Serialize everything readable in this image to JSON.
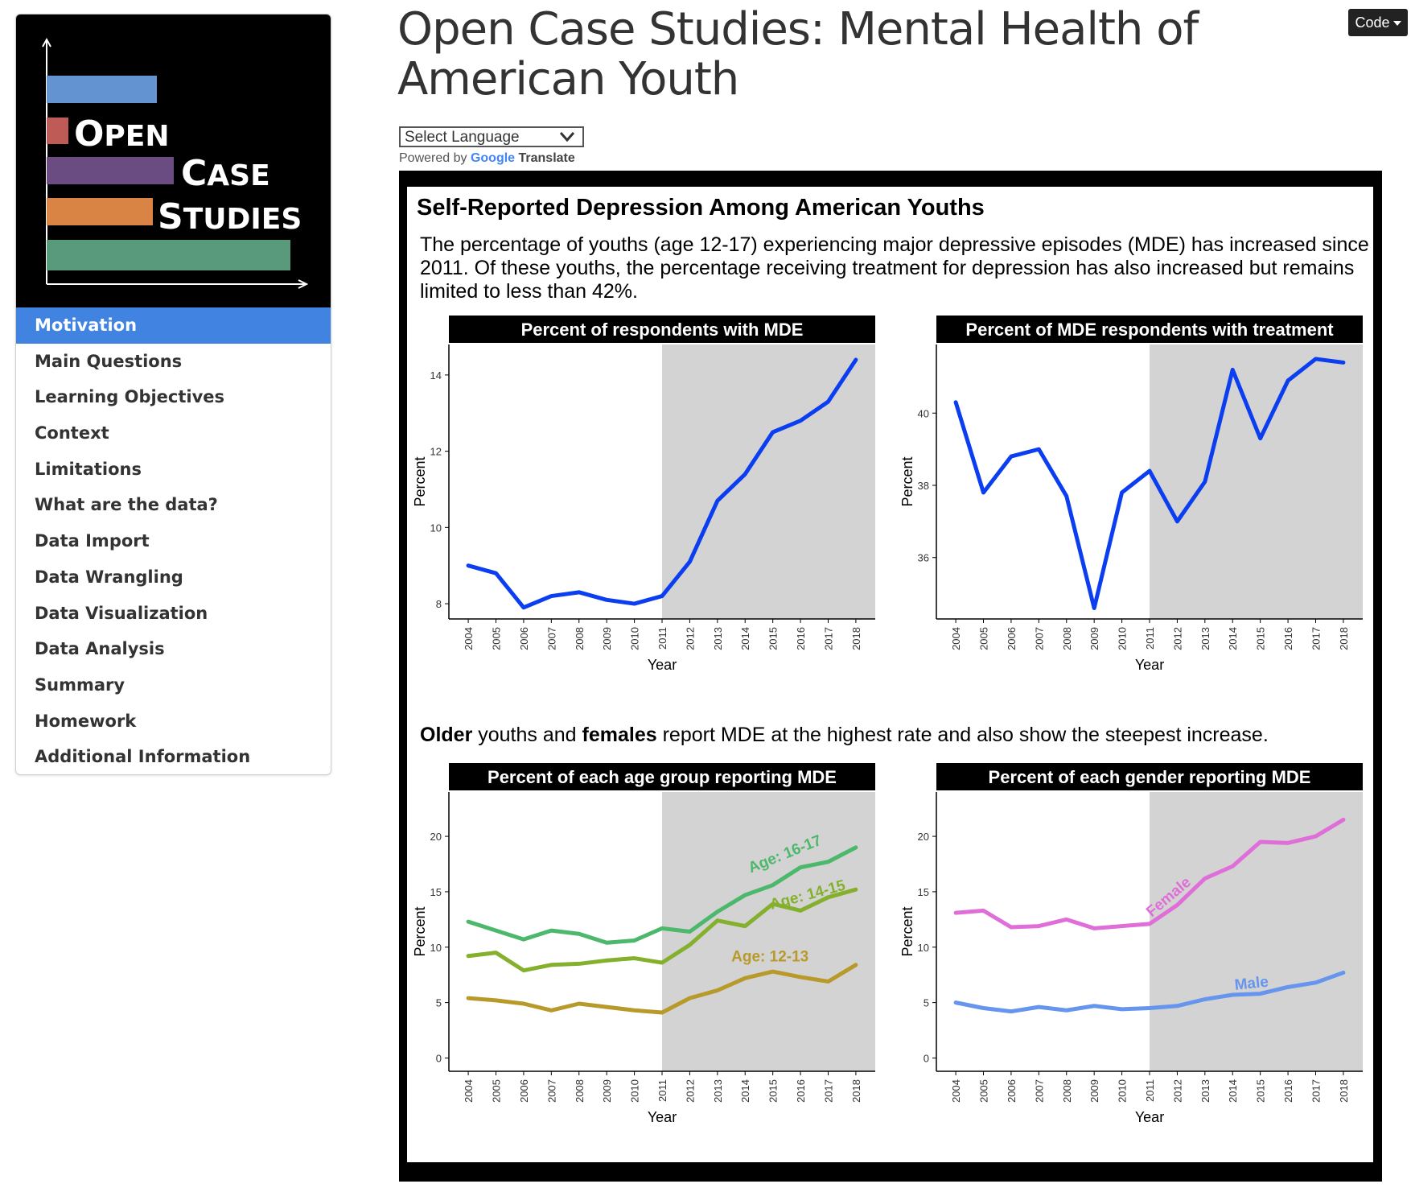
{
  "sidebar": {
    "logo": {
      "line1": "Open",
      "line2": "Case",
      "line3": "Studies"
    },
    "items": [
      {
        "label": "Motivation",
        "active": true
      },
      {
        "label": "Main Questions"
      },
      {
        "label": "Learning Objectives"
      },
      {
        "label": "Context"
      },
      {
        "label": "Limitations"
      },
      {
        "label": "What are the data?"
      },
      {
        "label": "Data Import"
      },
      {
        "label": "Data Wrangling"
      },
      {
        "label": "Data Visualization"
      },
      {
        "label": "Data Analysis"
      },
      {
        "label": "Summary"
      },
      {
        "label": "Homework"
      },
      {
        "label": "Additional Information"
      }
    ]
  },
  "header": {
    "title": "Open Case Studies: Mental Health of American Youth",
    "code_button": "Code"
  },
  "translate": {
    "select_label": "Select Language",
    "powered_by": "Powered by",
    "google": "Google",
    "translate": "Translate"
  },
  "infographic": {
    "title": "Self-Reported Depression Among American Youths",
    "description": "The percentage of youths (age 12-17) experiencing major depressive episodes (MDE) has increased since 2011. Of these youths, the percentage receiving treatment for depression has also increased but remains limited to less than 42%.",
    "description2_parts": [
      "Older",
      " youths and ",
      "females",
      " report MDE at the highest rate and also show the steepest increase."
    ]
  },
  "colors": {
    "sidebar_active": "#4183e0",
    "line_blue": "#0a3ef0",
    "shade": "#d3d3d3",
    "age_16_17": "#4cb86b",
    "age_14_15": "#85b02d",
    "age_12_13": "#b89a2a",
    "female": "#e06ed8",
    "male": "#6695ee"
  },
  "chart_data": [
    {
      "type": "line",
      "title": "Percent of respondents with MDE",
      "xlabel": "Year",
      "ylabel": "Percent",
      "x": [
        2004,
        2005,
        2006,
        2007,
        2008,
        2009,
        2010,
        2011,
        2012,
        2013,
        2014,
        2015,
        2016,
        2017,
        2018
      ],
      "ylim": [
        7.6,
        14.8
      ],
      "yticks": [
        8,
        10,
        12,
        14
      ],
      "shade_from": 2011,
      "series": [
        {
          "values": [
            9.0,
            8.8,
            7.9,
            8.2,
            8.3,
            8.1,
            8.0,
            8.2,
            9.1,
            10.7,
            11.4,
            12.5,
            12.8,
            13.3,
            14.4
          ]
        }
      ]
    },
    {
      "type": "line",
      "title": "Percent of MDE respondents with treatment",
      "xlabel": "Year",
      "ylabel": "Percent",
      "x": [
        2004,
        2005,
        2006,
        2007,
        2008,
        2009,
        2010,
        2011,
        2012,
        2013,
        2014,
        2015,
        2016,
        2017,
        2018
      ],
      "ylim": [
        34.3,
        41.9
      ],
      "yticks": [
        36,
        38,
        40
      ],
      "shade_from": 2011,
      "series": [
        {
          "values": [
            40.3,
            37.8,
            38.8,
            39.0,
            37.7,
            34.6,
            37.8,
            38.4,
            37.0,
            38.1,
            41.2,
            39.3,
            40.9,
            41.5,
            41.4
          ]
        }
      ]
    },
    {
      "type": "line",
      "title": "Percent of each age group reporting MDE",
      "xlabel": "Year",
      "ylabel": "Percent",
      "x": [
        2004,
        2005,
        2006,
        2007,
        2008,
        2009,
        2010,
        2011,
        2012,
        2013,
        2014,
        2015,
        2016,
        2017,
        2018
      ],
      "ylim": [
        -1.2,
        24.0
      ],
      "yticks": [
        0,
        5,
        10,
        15,
        20
      ],
      "shade_from": 2011,
      "series": [
        {
          "name": "Age: 16-17",
          "values": [
            12.3,
            11.5,
            10.7,
            11.5,
            11.2,
            10.4,
            10.6,
            11.7,
            11.4,
            13.2,
            14.7,
            15.6,
            17.2,
            17.7,
            19.0
          ]
        },
        {
          "name": "Age: 14-15",
          "values": [
            9.2,
            9.5,
            7.9,
            8.4,
            8.5,
            8.8,
            9.0,
            8.6,
            10.2,
            12.4,
            11.9,
            13.9,
            13.3,
            14.5,
            15.2
          ]
        },
        {
          "name": "Age: 12-13",
          "values": [
            5.4,
            5.2,
            4.9,
            4.3,
            4.9,
            4.6,
            4.3,
            4.1,
            5.4,
            6.1,
            7.2,
            7.8,
            7.3,
            6.9,
            8.4
          ]
        }
      ]
    },
    {
      "type": "line",
      "title": "Percent of each gender reporting MDE",
      "xlabel": "Year",
      "ylabel": "Percent",
      "x": [
        2004,
        2005,
        2006,
        2007,
        2008,
        2009,
        2010,
        2011,
        2012,
        2013,
        2014,
        2015,
        2016,
        2017,
        2018
      ],
      "ylim": [
        -1.2,
        24.0
      ],
      "yticks": [
        0,
        5,
        10,
        15,
        20
      ],
      "shade_from": 2011,
      "series": [
        {
          "name": "Female",
          "values": [
            13.1,
            13.3,
            11.8,
            11.9,
            12.5,
            11.7,
            11.9,
            12.1,
            13.8,
            16.2,
            17.3,
            19.5,
            19.4,
            20.0,
            21.5
          ]
        },
        {
          "name": "Male",
          "values": [
            5.0,
            4.5,
            4.2,
            4.6,
            4.3,
            4.7,
            4.4,
            4.5,
            4.7,
            5.3,
            5.7,
            5.8,
            6.4,
            6.8,
            7.7
          ]
        }
      ]
    }
  ]
}
